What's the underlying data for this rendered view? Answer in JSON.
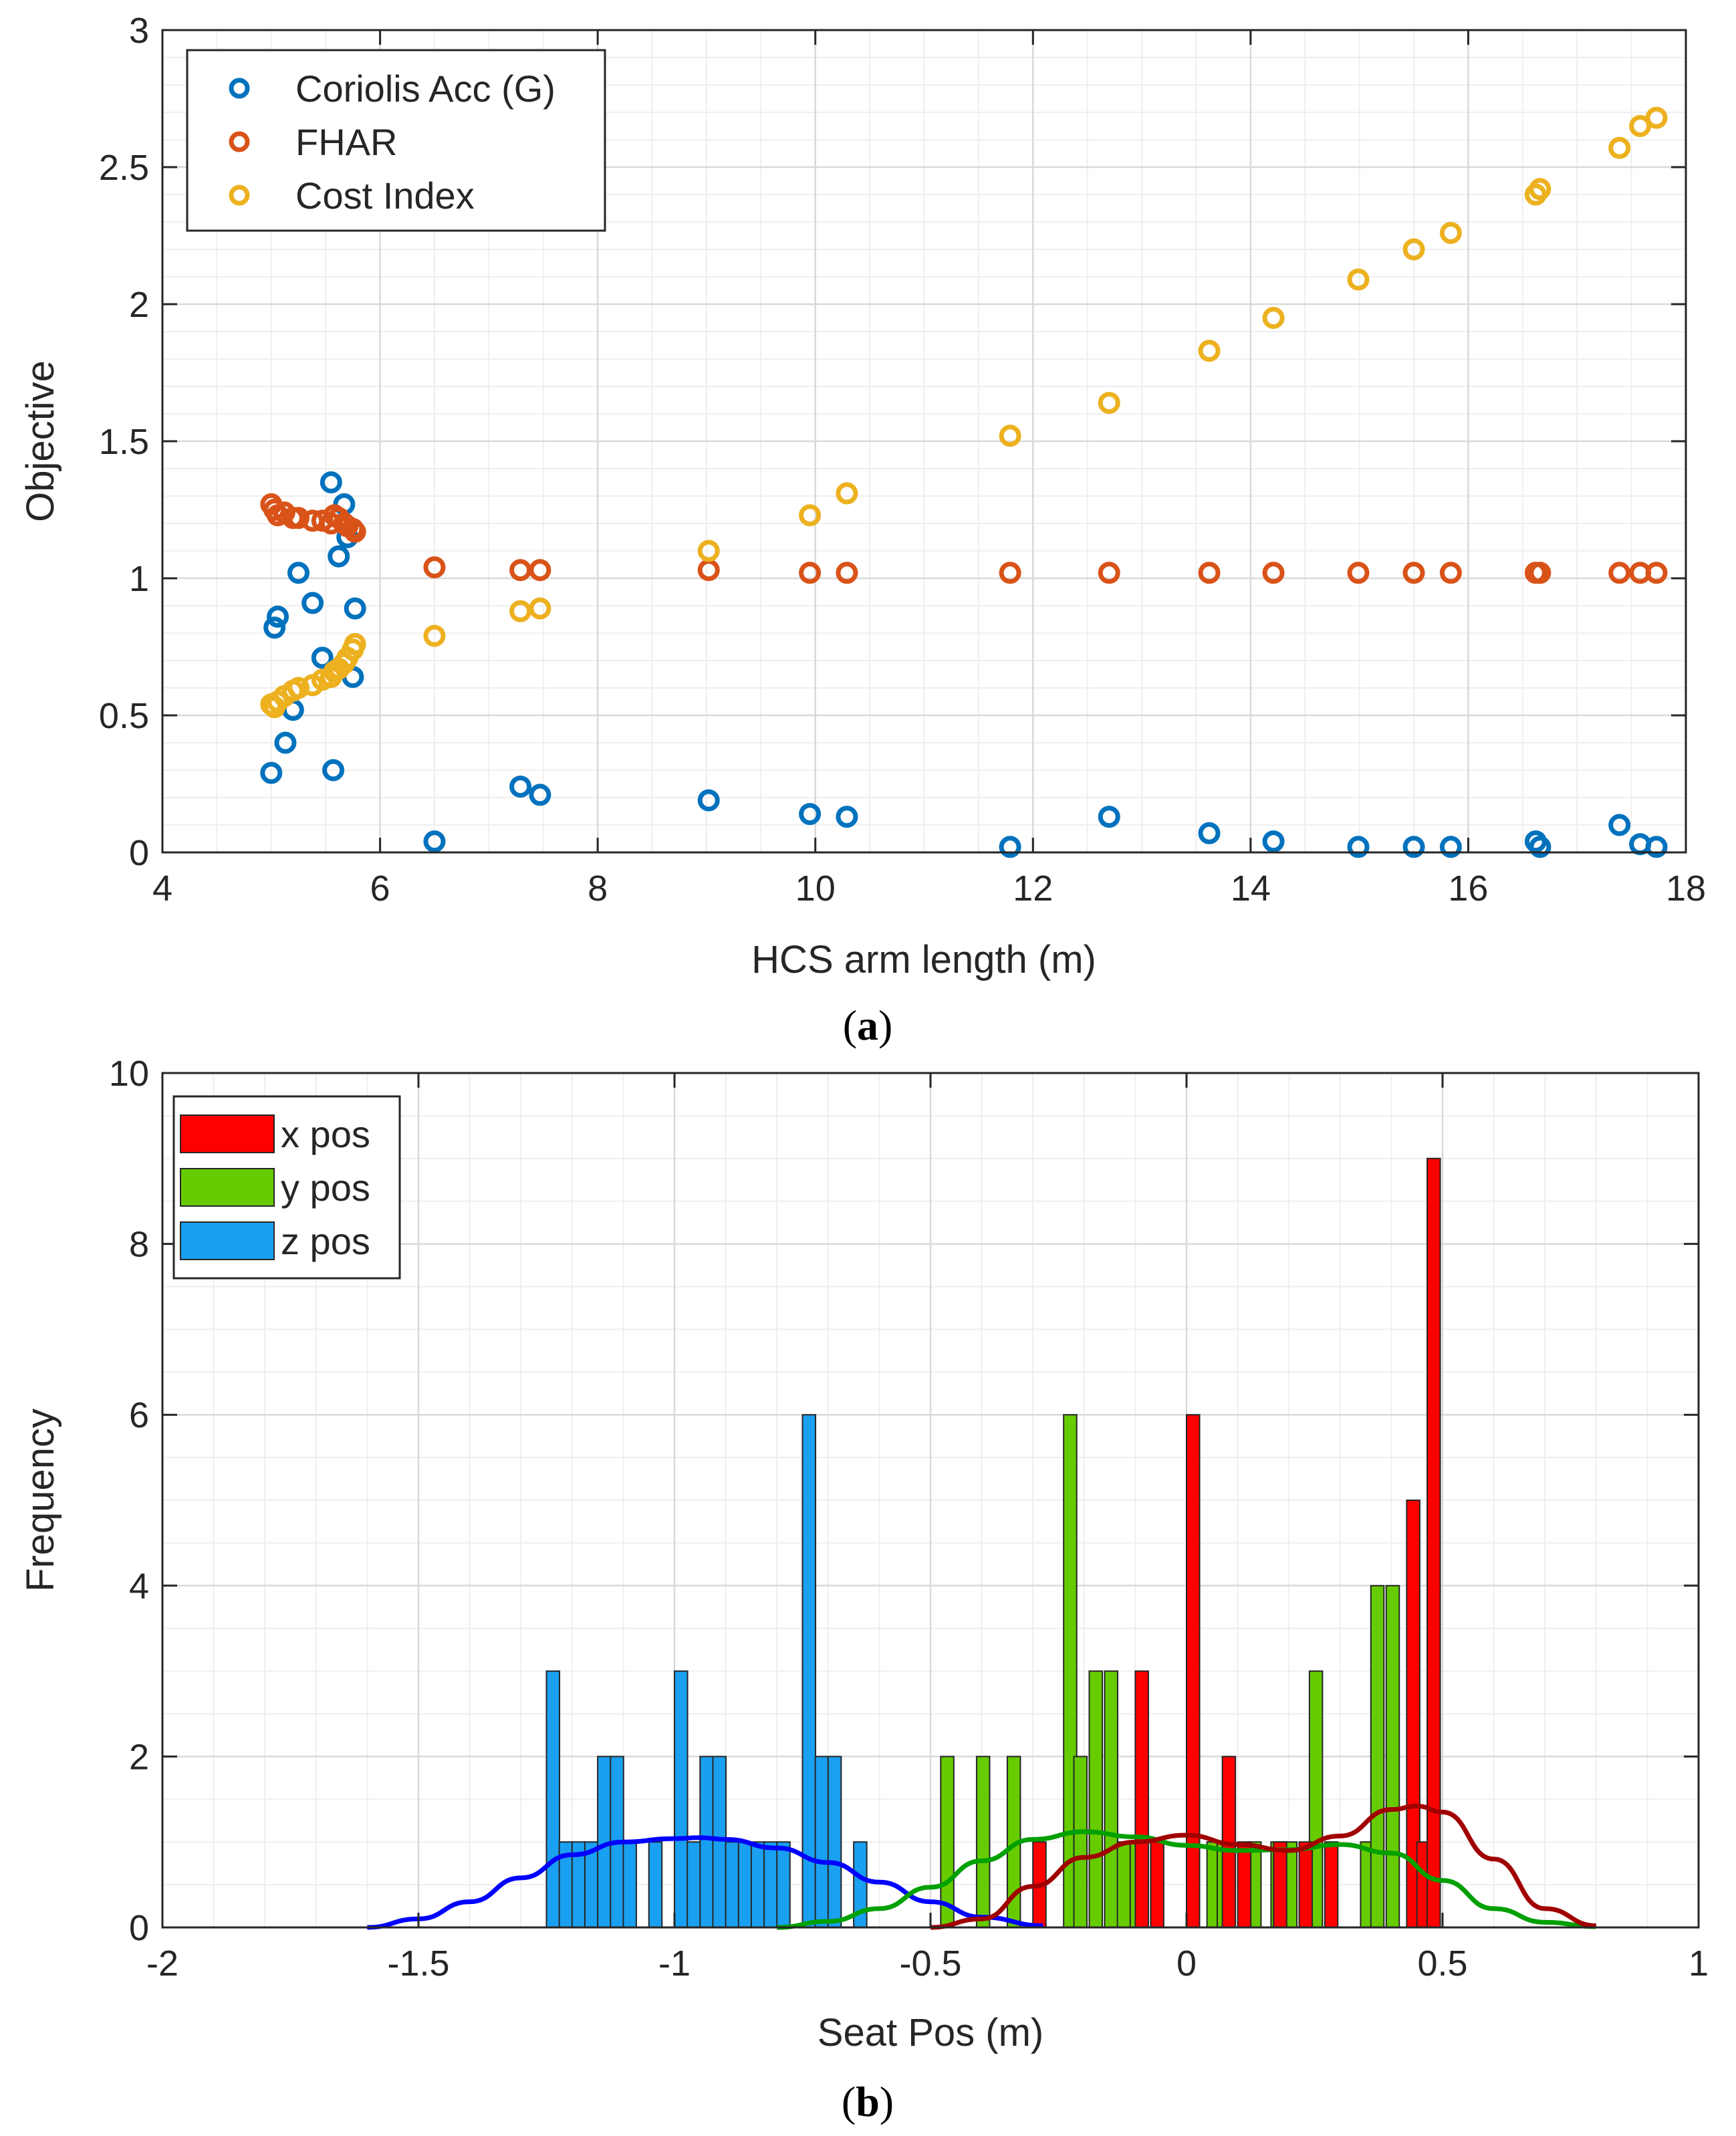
{
  "colors": {
    "coriolis": "#0072BD",
    "fhar": "#D95319",
    "cost": "#EDB120",
    "x_bar": "#FF0000",
    "y_bar": "#66CC00",
    "z_bar": "#1AA0F0",
    "x_curve": "#A00000",
    "y_curve": "#00A000",
    "z_curve": "#0000FF",
    "axis": "#262626",
    "grid_major": "#D9D9D9",
    "grid_minor": "#EFEFEF"
  },
  "captions": {
    "a": "a",
    "b": "b"
  },
  "chart_data": [
    {
      "type": "scatter",
      "panel": "a",
      "xlabel": "HCS arm length (m)",
      "ylabel": "Objective",
      "xlim": [
        4,
        18
      ],
      "ylim": [
        0,
        3
      ],
      "xticks": [
        4,
        6,
        8,
        10,
        12,
        14,
        16,
        18
      ],
      "xtick_labels": [
        "4",
        "6",
        "8",
        "10",
        "12",
        "14",
        "16",
        "18"
      ],
      "yticks": [
        0,
        0.5,
        1,
        1.5,
        2,
        2.5,
        3
      ],
      "ytick_labels": [
        "0",
        "0.5",
        "1",
        "1.5",
        "2",
        "2.5",
        "3"
      ],
      "grid": true,
      "minor_grid": true,
      "legend_position": "top-left",
      "series": [
        {
          "name": "Coriolis Acc (G)",
          "color_key": "coriolis",
          "x": [
            5.0,
            5.03,
            5.06,
            5.13,
            5.2,
            5.25,
            5.38,
            5.47,
            5.55,
            5.57,
            5.62,
            5.67,
            5.7,
            5.75,
            5.77,
            6.5,
            7.29,
            7.47,
            9.02,
            9.95,
            10.29,
            11.79,
            12.7,
            13.62,
            14.21,
            14.99,
            15.5,
            15.84,
            16.62,
            16.66,
            17.39,
            17.58,
            17.73
          ],
          "y": [
            0.29,
            0.82,
            0.86,
            0.4,
            0.52,
            1.02,
            0.91,
            0.71,
            1.35,
            0.3,
            1.08,
            1.27,
            1.15,
            0.64,
            0.89,
            0.04,
            0.24,
            0.21,
            0.19,
            0.14,
            0.13,
            0.02,
            0.13,
            0.07,
            0.04,
            0.02,
            0.02,
            0.02,
            0.04,
            0.02,
            0.1,
            0.03,
            0.02
          ]
        },
        {
          "name": "FHAR",
          "color_key": "fhar",
          "x": [
            5.0,
            5.03,
            5.06,
            5.12,
            5.2,
            5.25,
            5.38,
            5.47,
            5.55,
            5.58,
            5.62,
            5.67,
            5.7,
            5.75,
            5.77,
            6.5,
            7.29,
            7.47,
            9.02,
            9.95,
            10.29,
            11.79,
            12.7,
            13.62,
            14.21,
            14.99,
            15.5,
            15.84,
            16.62,
            16.66,
            17.39,
            17.58,
            17.73
          ],
          "y": [
            1.27,
            1.25,
            1.23,
            1.24,
            1.22,
            1.22,
            1.21,
            1.21,
            1.2,
            1.23,
            1.22,
            1.2,
            1.19,
            1.18,
            1.17,
            1.04,
            1.03,
            1.03,
            1.03,
            1.02,
            1.02,
            1.02,
            1.02,
            1.02,
            1.02,
            1.02,
            1.02,
            1.02,
            1.02,
            1.02,
            1.02,
            1.02,
            1.02
          ]
        },
        {
          "name": "Cost Index",
          "color_key": "cost",
          "x": [
            5.0,
            5.03,
            5.06,
            5.12,
            5.2,
            5.25,
            5.38,
            5.47,
            5.55,
            5.58,
            5.62,
            5.67,
            5.7,
            5.75,
            5.77,
            6.5,
            7.29,
            7.47,
            9.02,
            9.95,
            10.29,
            11.79,
            12.7,
            13.62,
            14.21,
            14.99,
            15.5,
            15.84,
            16.62,
            16.66,
            17.39,
            17.58,
            17.73
          ],
          "y": [
            0.54,
            0.53,
            0.55,
            0.57,
            0.59,
            0.6,
            0.61,
            0.63,
            0.64,
            0.66,
            0.67,
            0.69,
            0.71,
            0.74,
            0.76,
            0.79,
            0.88,
            0.89,
            1.1,
            1.23,
            1.31,
            1.52,
            1.64,
            1.83,
            1.95,
            2.09,
            2.2,
            2.26,
            2.4,
            2.42,
            2.57,
            2.65,
            2.68
          ]
        }
      ]
    },
    {
      "type": "bar",
      "panel": "b",
      "subtype": "histogram",
      "xlabel": "Seat Pos (m)",
      "ylabel": "Frequency",
      "xlim": [
        -2,
        1
      ],
      "ylim": [
        0,
        10
      ],
      "xticks": [
        -2,
        -1.5,
        -1,
        -0.5,
        0,
        0.5,
        1
      ],
      "xtick_labels": [
        "-2",
        "-1.5",
        "-1",
        "-0.5",
        "0",
        "0.5",
        "1"
      ],
      "yticks": [
        0,
        2,
        4,
        6,
        8,
        10
      ],
      "ytick_labels": [
        "0",
        "2",
        "4",
        "6",
        "8",
        "10"
      ],
      "grid": true,
      "minor_grid": true,
      "legend_position": "top-left",
      "bin_width": 0.0255,
      "series": [
        {
          "name": "x pos",
          "color_key": "x_bar",
          "curve_color_key": "x_curve",
          "bin_left_edges": [
            -0.3,
            -0.1,
            -0.07,
            0.0,
            0.07,
            0.1,
            0.17,
            0.22,
            0.27,
            0.43,
            0.45,
            0.47
          ],
          "counts": [
            1,
            3,
            1,
            6,
            2,
            1,
            1,
            1,
            1,
            5,
            1,
            9
          ],
          "fit_curve": {
            "x": [
              -0.5,
              -0.4,
              -0.3,
              -0.2,
              -0.1,
              0.0,
              0.1,
              0.2,
              0.3,
              0.4,
              0.45,
              0.5,
              0.6,
              0.7,
              0.8
            ],
            "y": [
              0.0,
              0.1,
              0.48,
              0.82,
              1.0,
              1.08,
              0.97,
              0.9,
              1.07,
              1.38,
              1.42,
              1.35,
              0.8,
              0.22,
              0.02
            ]
          }
        },
        {
          "name": "y pos",
          "color_key": "y_bar",
          "curve_color_key": "y_curve",
          "bin_left_edges": [
            -0.48,
            -0.41,
            -0.35,
            -0.24,
            -0.22,
            -0.19,
            -0.16,
            -0.135,
            -0.11,
            0.04,
            0.06,
            0.12,
            0.165,
            0.19,
            0.24,
            0.34,
            0.36,
            0.39
          ],
          "counts": [
            2,
            2,
            2,
            6,
            2,
            3,
            3,
            1,
            1,
            1,
            1,
            1,
            1,
            1,
            3,
            1,
            4,
            4
          ],
          "fit_curve": {
            "x": [
              -0.8,
              -0.7,
              -0.6,
              -0.5,
              -0.4,
              -0.3,
              -0.2,
              -0.1,
              0.0,
              0.1,
              0.2,
              0.3,
              0.4,
              0.5,
              0.6,
              0.7,
              0.8
            ],
            "y": [
              0.0,
              0.07,
              0.22,
              0.47,
              0.78,
              1.03,
              1.12,
              1.06,
              0.96,
              0.9,
              0.91,
              0.97,
              0.87,
              0.55,
              0.22,
              0.06,
              0.01
            ]
          }
        },
        {
          "name": "z pos",
          "color_key": "z_bar",
          "curve_color_key": "z_curve",
          "bin_left_edges": [
            -1.25,
            -1.225,
            -1.2,
            -1.175,
            -1.15,
            -1.125,
            -1.1,
            -1.05,
            -1.0,
            -0.975,
            -0.95,
            -0.925,
            -0.9,
            -0.875,
            -0.85,
            -0.825,
            -0.8,
            -0.75,
            -0.725,
            -0.7,
            -0.65
          ],
          "counts": [
            3,
            1,
            1,
            1,
            2,
            2,
            1,
            1,
            3,
            1,
            2,
            2,
            1,
            1,
            1,
            1,
            1,
            6,
            2,
            2,
            1
          ],
          "fit_curve": {
            "x": [
              -1.6,
              -1.5,
              -1.4,
              -1.3,
              -1.2,
              -1.1,
              -1.0,
              -0.95,
              -0.9,
              -0.8,
              -0.7,
              -0.6,
              -0.5,
              -0.4,
              -0.28
            ],
            "y": [
              0.0,
              0.1,
              0.3,
              0.58,
              0.85,
              1.0,
              1.04,
              1.05,
              1.03,
              0.93,
              0.76,
              0.53,
              0.3,
              0.12,
              0.02
            ]
          }
        }
      ]
    }
  ]
}
